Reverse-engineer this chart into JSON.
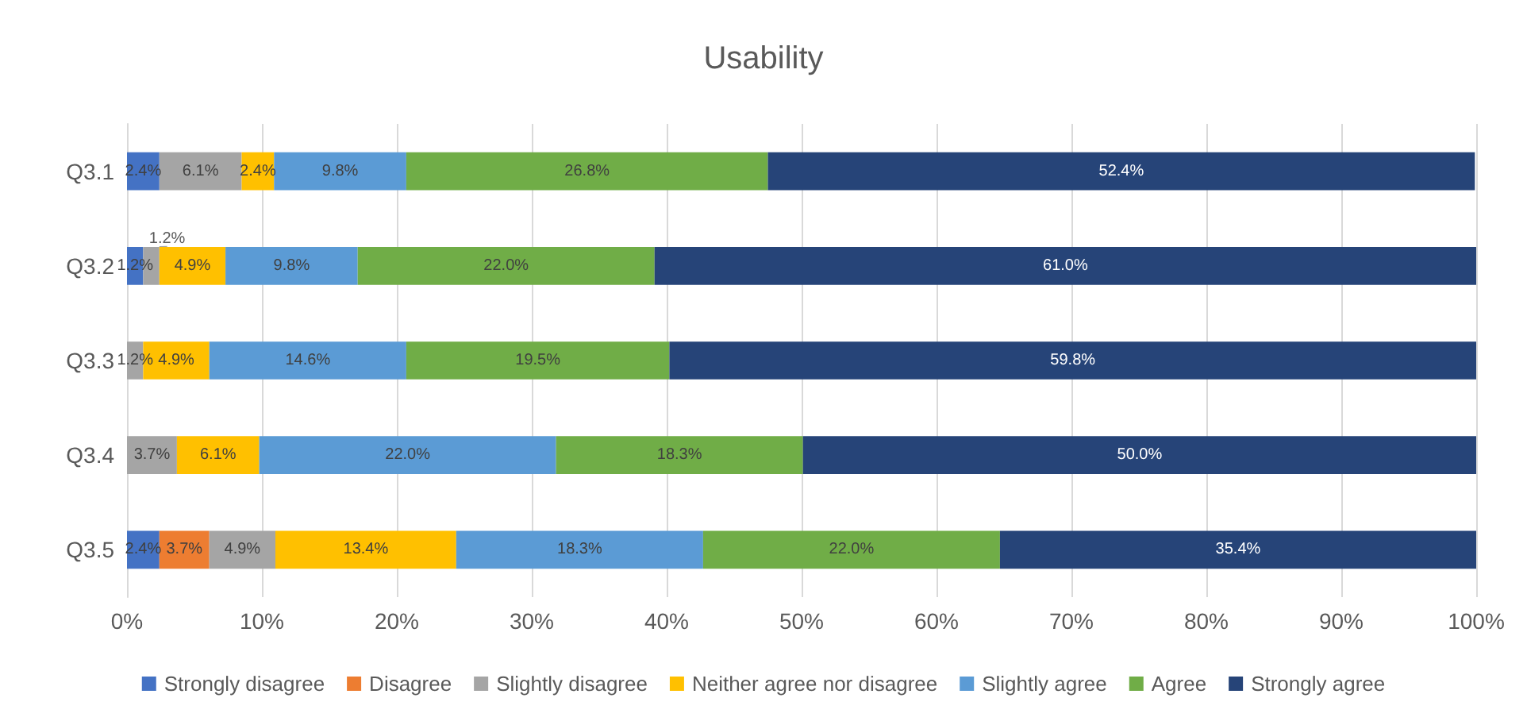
{
  "chart_data": {
    "type": "bar",
    "title": "Usability",
    "orientation": "horizontal",
    "stacked": true,
    "categories": [
      "Q3.1",
      "Q3.2",
      "Q3.3",
      "Q3.4",
      "Q3.5"
    ],
    "xlim": [
      0,
      100
    ],
    "xticks": [
      {
        "value": 0,
        "label": "0%"
      },
      {
        "value": 10,
        "label": "10%"
      },
      {
        "value": 20,
        "label": "20%"
      },
      {
        "value": 30,
        "label": "30%"
      },
      {
        "value": 40,
        "label": "40%"
      },
      {
        "value": 50,
        "label": "50%"
      },
      {
        "value": 60,
        "label": "60%"
      },
      {
        "value": 70,
        "label": "70%"
      },
      {
        "value": 80,
        "label": "80%"
      },
      {
        "value": 90,
        "label": "90%"
      },
      {
        "value": 100,
        "label": "100%"
      }
    ],
    "grid": "x",
    "legend": "bottom",
    "series": [
      {
        "name": "Strongly disagree",
        "color": "#4472c4",
        "values": [
          2.4,
          1.2,
          null,
          null,
          2.4
        ],
        "value_labels": [
          "2.4%",
          "1.2%",
          null,
          null,
          "2.4%"
        ]
      },
      {
        "name": "Disagree",
        "color": "#ed7d31",
        "values": [
          null,
          null,
          null,
          null,
          3.7
        ],
        "value_labels": [
          null,
          null,
          null,
          null,
          "3.7%"
        ]
      },
      {
        "name": "Slightly disagree",
        "color": "#a5a5a5",
        "values": [
          6.1,
          1.2,
          1.2,
          3.7,
          4.9
        ],
        "value_labels": [
          "6.1%",
          "1.2%",
          "1.2%",
          "3.7%",
          "4.9%"
        ]
      },
      {
        "name": "Neither agree nor disagree",
        "color": "#ffc000",
        "values": [
          2.4,
          4.9,
          4.9,
          6.1,
          13.4
        ],
        "value_labels": [
          "2.4%",
          "4.9%",
          "4.9%",
          "6.1%",
          "13.4%"
        ]
      },
      {
        "name": "Slightly agree",
        "color": "#5b9bd5",
        "values": [
          9.8,
          9.8,
          14.6,
          22.0,
          18.3
        ],
        "value_labels": [
          "9.8%",
          "9.8%",
          "14.6%",
          "22.0%",
          "18.3%"
        ]
      },
      {
        "name": "Agree",
        "color": "#70ad47",
        "values": [
          26.8,
          22.0,
          19.5,
          18.3,
          22.0
        ],
        "value_labels": [
          "26.8%",
          "22.0%",
          "19.5%",
          "18.3%",
          "22.0%"
        ]
      },
      {
        "name": "Strongly agree",
        "color": "#264478",
        "values": [
          52.4,
          61.0,
          59.8,
          50.0,
          35.4
        ],
        "value_labels": [
          "52.4%",
          "61.0%",
          "59.8%",
          "50.0%",
          "35.4%"
        ]
      }
    ]
  }
}
